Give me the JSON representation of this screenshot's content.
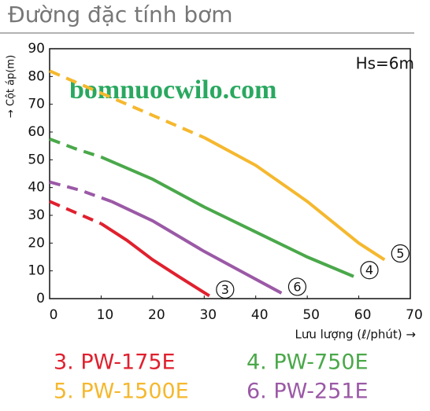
{
  "chart_data": {
    "type": "line",
    "title": "Đường đặc tính bơm",
    "ylabel": "→ Cột áp(m)",
    "xlabel": "Lưu lượng (ℓ/phút) →",
    "annotation": "Hs=6m",
    "watermark": "bomnuocwilo.com",
    "xlim": [
      0,
      70
    ],
    "xticks": [
      0,
      10,
      20,
      30,
      40,
      50,
      60,
      70
    ],
    "ylim": [
      0,
      90
    ],
    "yticks": [
      0,
      10,
      20,
      30,
      40,
      50,
      60,
      70,
      80,
      90
    ],
    "grid": false,
    "series": [
      {
        "name": "3. PW-175E",
        "tag": "3",
        "color": "#e0202e",
        "dashed_until_x": 10,
        "x": [
          0,
          5,
          10,
          15,
          20,
          25,
          31
        ],
        "values": [
          35,
          31,
          27,
          21,
          14,
          8,
          1
        ]
      },
      {
        "name": "4. PW-750E",
        "tag": "4",
        "color": "#4aa84a",
        "dashed_until_x": 10,
        "x": [
          0,
          5,
          10,
          20,
          30,
          40,
          50,
          59
        ],
        "values": [
          57.5,
          54,
          51,
          43,
          33,
          24,
          15,
          8
        ]
      },
      {
        "name": "5. PW-1500E",
        "tag": "5",
        "color": "#f5b82e",
        "dashed_until_x": 30,
        "x": [
          0,
          10,
          20,
          30,
          40,
          50,
          60,
          65
        ],
        "values": [
          82,
          74,
          66,
          58,
          48,
          35,
          20,
          14
        ]
      },
      {
        "name": "6. PW-251E",
        "tag": "6",
        "color": "#9b59a6",
        "dashed_until_x": 12,
        "x": [
          0,
          6,
          12,
          20,
          30,
          38,
          45
        ],
        "values": [
          42,
          39,
          35,
          28,
          17,
          9,
          2
        ]
      }
    ]
  }
}
